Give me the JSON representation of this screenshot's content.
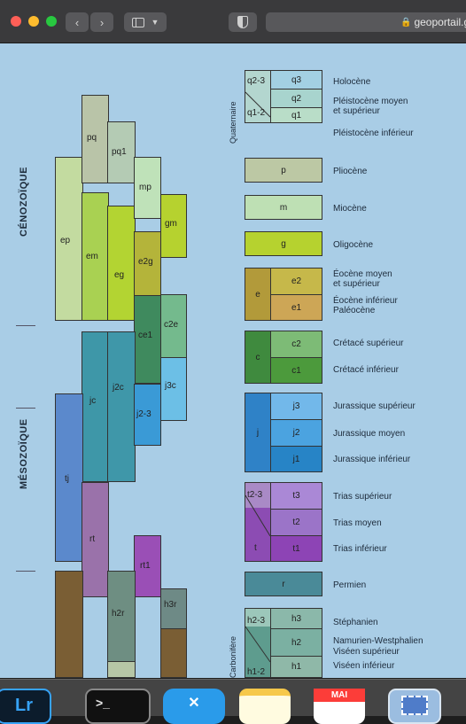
{
  "browser": {
    "url": "geoportail.g",
    "tab_icon": "sidebar-icon"
  },
  "eras": {
    "cenozoic": "CÉNOZOÏQUE",
    "mesozoic": "MÉSOZOÏQUE"
  },
  "columns": {
    "ep": "ep",
    "em": "em",
    "eg": "eg",
    "e2g": "e2g",
    "pq": "pq",
    "pq1": "pq1",
    "mp": "mp",
    "gm": "gm",
    "ce1": "ce1",
    "c2e": "c2e",
    "jc": "jc",
    "j2c": "j2c",
    "j3c": "j3c",
    "j23": "j2-3",
    "tj": "tj",
    "rt": "rt",
    "rt1": "rt1",
    "h2r": "h2r",
    "h3r": "h3r"
  },
  "legend": {
    "quaternaire": "Quaternaire",
    "carbonifere": "Carbonifère",
    "q23": "q2-3",
    "q3": "q3",
    "q2": "q2",
    "q12": "q1-2",
    "q1": "q1",
    "holocene": "Holocène",
    "pleisto_moyen_1": "Pléistocène moyen",
    "pleisto_moyen_2": "et supérieur",
    "pleisto_inf": "Pléistocène inférieur",
    "p": "p",
    "pliocene": "Pliocène",
    "m": "m",
    "miocene": "Miocène",
    "g": "g",
    "oligocene": "Oligocène",
    "e": "e",
    "e2": "e2",
    "e1": "e1",
    "eocene_moyen_1": "Éocène moyen",
    "eocene_moyen_2": "et supérieur",
    "eocene_inf": "Éocène inférieur",
    "paleocene": "Paléocène",
    "c": "c",
    "c2": "c2",
    "c1": "c1",
    "cretace_sup": "Crétacé supérieur",
    "cretace_inf": "Crétacé inférieur",
    "j": "j",
    "j3": "j3",
    "j2": "j2",
    "j1": "j1",
    "jura_sup": "Jurassique supérieur",
    "jura_moy": "Jurassique moyen",
    "jura_inf": "Jurassique inférieur",
    "t23": "t2-3",
    "t3": "t3",
    "t2": "t2",
    "t": "t",
    "t1": "t1",
    "trias_sup": "Trias supérieur",
    "trias_moy": "Trias moyen",
    "trias_inf": "Trias inférieur",
    "r": "r",
    "permien": "Permien",
    "h23": "h2-3",
    "h3": "h3",
    "h2": "h2",
    "h12": "h1-2",
    "h1": "h1",
    "stephanien": "Stéphanien",
    "namurien": "Namurien-Westphalien",
    "viseen_sup": "Viséen supérieur",
    "viseen_inf": "Viséen inférieur"
  },
  "dock": {
    "mail_label": "MAI",
    "terminal_label": ">_"
  }
}
